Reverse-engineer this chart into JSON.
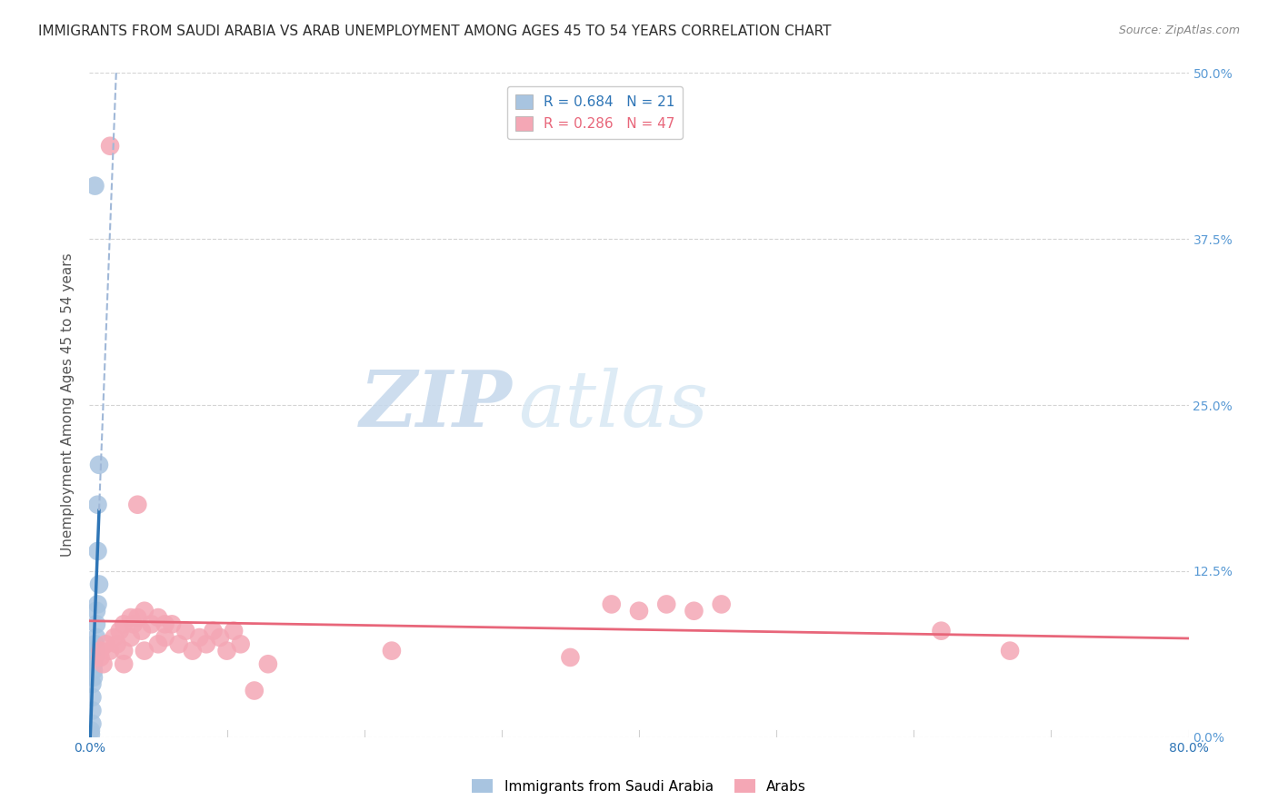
{
  "title": "IMMIGRANTS FROM SAUDI ARABIA VS ARAB UNEMPLOYMENT AMONG AGES 45 TO 54 YEARS CORRELATION CHART",
  "source": "Source: ZipAtlas.com",
  "ylabel_label": "Unemployment Among Ages 45 to 54 years",
  "right_ytick_color": "#5b9bd5",
  "watermark_zip": "ZIP",
  "watermark_atlas": "atlas",
  "blue_R": 0.684,
  "blue_N": 21,
  "pink_R": 0.286,
  "pink_N": 47,
  "legend_blue_label": "Immigrants from Saudi Arabia",
  "legend_pink_label": "Arabs",
  "blue_scatter_x": [
    0.004,
    0.007,
    0.006,
    0.006,
    0.007,
    0.006,
    0.005,
    0.005,
    0.005,
    0.004,
    0.004,
    0.004,
    0.003,
    0.003,
    0.003,
    0.002,
    0.002,
    0.002,
    0.002,
    0.001,
    0.001
  ],
  "blue_scatter_y": [
    0.415,
    0.205,
    0.175,
    0.14,
    0.115,
    0.1,
    0.095,
    0.085,
    0.075,
    0.07,
    0.065,
    0.06,
    0.055,
    0.05,
    0.045,
    0.04,
    0.03,
    0.02,
    0.01,
    0.005,
    0.002
  ],
  "pink_scatter_x": [
    0.015,
    0.035,
    0.008,
    0.008,
    0.01,
    0.012,
    0.015,
    0.018,
    0.02,
    0.022,
    0.025,
    0.025,
    0.025,
    0.03,
    0.03,
    0.032,
    0.035,
    0.038,
    0.04,
    0.04,
    0.045,
    0.05,
    0.05,
    0.055,
    0.055,
    0.06,
    0.065,
    0.07,
    0.075,
    0.08,
    0.085,
    0.09,
    0.095,
    0.1,
    0.105,
    0.11,
    0.12,
    0.13,
    0.22,
    0.35,
    0.38,
    0.4,
    0.42,
    0.44,
    0.46,
    0.62,
    0.67
  ],
  "pink_scatter_y": [
    0.445,
    0.175,
    0.065,
    0.06,
    0.055,
    0.07,
    0.065,
    0.075,
    0.07,
    0.08,
    0.085,
    0.065,
    0.055,
    0.09,
    0.075,
    0.085,
    0.09,
    0.08,
    0.095,
    0.065,
    0.085,
    0.09,
    0.07,
    0.085,
    0.075,
    0.085,
    0.07,
    0.08,
    0.065,
    0.075,
    0.07,
    0.08,
    0.075,
    0.065,
    0.08,
    0.07,
    0.035,
    0.055,
    0.065,
    0.06,
    0.1,
    0.095,
    0.1,
    0.095,
    0.1,
    0.08,
    0.065
  ],
  "xlim": [
    0,
    0.8
  ],
  "ylim": [
    0,
    0.5
  ],
  "blue_scatter_color": "#a8c4e0",
  "pink_scatter_color": "#f4a7b5",
  "blue_line_color": "#2e75b6",
  "pink_line_color": "#e8667a",
  "blue_dash_color": "#a0b8d8",
  "grid_color": "#d0d0d0",
  "background_color": "#ffffff",
  "title_fontsize": 11,
  "source_fontsize": 9,
  "tick_fontsize": 10,
  "ylabel_fontsize": 11,
  "watermark_zip_color": "#c5d8ec",
  "watermark_atlas_color": "#d8e8f4",
  "watermark_fontsize": 62
}
